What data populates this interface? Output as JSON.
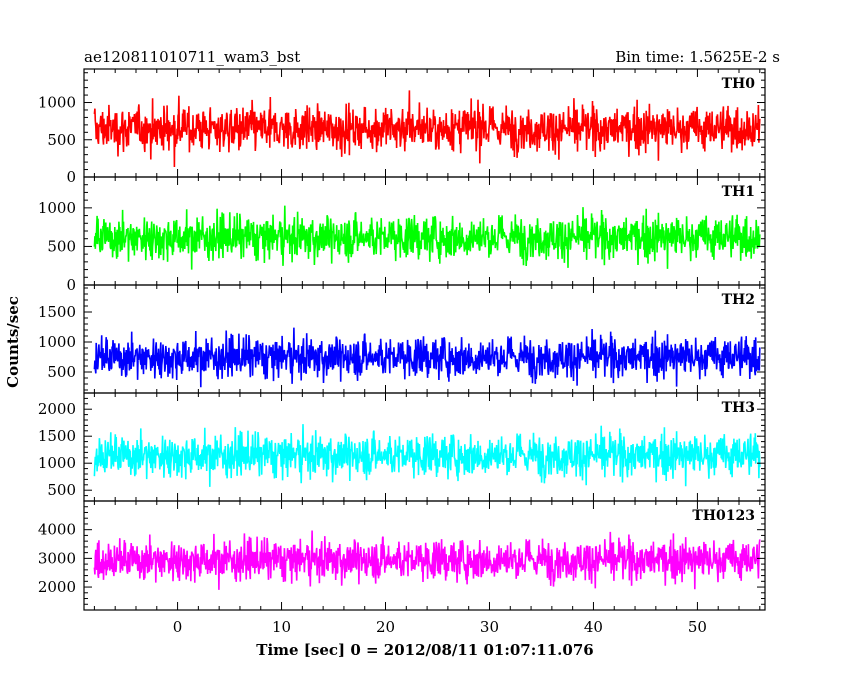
{
  "header": {
    "title": "ae120811010711_wam3_bst",
    "bin_time": "Bin time: 1.5625E-2 s"
  },
  "chart_data": {
    "type": "line",
    "xlabel": "Time [sec] 0 = 2012/08/11 01:07:11.076",
    "ylabel": "Counts/sec",
    "xlim": [
      -9,
      56.5
    ],
    "x_range": [
      -8,
      56
    ],
    "bin_time": 0.015625,
    "x_ticks": [
      0,
      10,
      20,
      30,
      40,
      50
    ],
    "grid": false,
    "panels": [
      {
        "name": "TH0",
        "color": "#ff0000",
        "ylim": [
          0,
          1450
        ],
        "y_ticks": [
          0,
          500,
          1000
        ],
        "typical_range": [
          150,
          1200
        ],
        "mean": 650
      },
      {
        "name": "TH1",
        "color": "#00ff00",
        "ylim": [
          0,
          1400
        ],
        "y_ticks": [
          0,
          500,
          1000
        ],
        "typical_range": [
          150,
          1150
        ],
        "mean": 620
      },
      {
        "name": "TH2",
        "color": "#0000ff",
        "ylim": [
          150,
          1950
        ],
        "y_ticks": [
          500,
          1000,
          1500
        ],
        "typical_range": [
          250,
          1450
        ],
        "mean": 750
      },
      {
        "name": "TH3",
        "color": "#00ffff",
        "ylim": [
          300,
          2300
        ],
        "y_ticks": [
          500,
          1000,
          1500,
          2000
        ],
        "typical_range": [
          550,
          1950
        ],
        "mean": 1150
      },
      {
        "name": "TH0123",
        "color": "#ff00ff",
        "ylim": [
          1200,
          5000
        ],
        "y_ticks": [
          2000,
          3000,
          4000
        ],
        "typical_range": [
          1700,
          4200
        ],
        "mean": 2950
      }
    ]
  }
}
